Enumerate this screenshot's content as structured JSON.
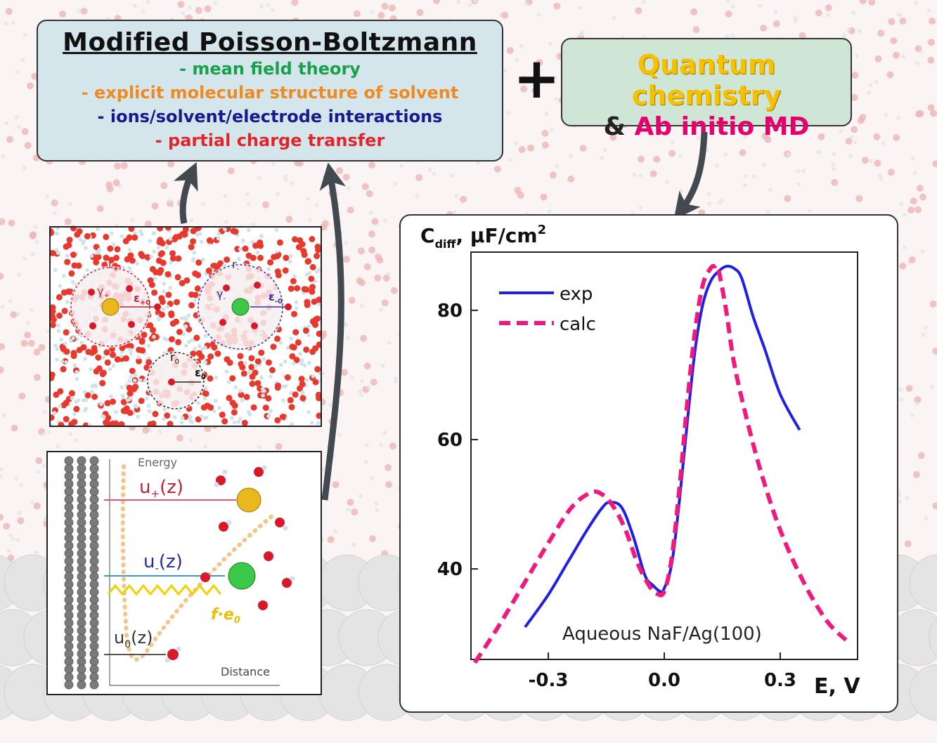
{
  "colors": {
    "green": "#1aa04a",
    "orange": "#ee8a1f",
    "navy": "#1b1a8c",
    "red": "#e0262a",
    "yellow": "#f5c100",
    "magenta": "#e6006e",
    "exp_line": "#1f1fe6",
    "calc_line": "#ee1a7d"
  },
  "mpb": {
    "title": "Modified Poisson-Boltzmann",
    "lines": [
      "- mean field theory",
      "- explicit molecular structure of solvent",
      "- ions/solvent/electrode interactions",
      "- partial charge transfer"
    ]
  },
  "qc": {
    "line1": "Quantum chemistry",
    "amp": "& ",
    "line2": "Ab initio MD"
  },
  "plus": "+",
  "panel1": {
    "r_plus": "r",
    "r_plus_sub": "+",
    "gamma_plus": "γ",
    "gamma_plus_sub": "+",
    "eps_plus": "ε",
    "eps_plus_sub": "+0",
    "r_minus": "r",
    "r_minus_sub": "-",
    "gamma_minus": "γ",
    "gamma_minus_sub": "-",
    "eps_minus": "ε",
    "eps_minus_sub": "-0",
    "r_zero": "r",
    "r_zero_sub": "0",
    "eps_zero": "ε",
    "eps_zero_sub": "0"
  },
  "panel2": {
    "energy": "Energy",
    "distance": "Distance",
    "u_plus": "u",
    "u_plus_sub": "+",
    "u_plus_z": "(z)",
    "u_minus": "u",
    "u_minus_sub": "-",
    "u_minus_z": "(z)",
    "u_zero": "u",
    "u_zero_sub": "0",
    "u_zero_z": "(z)",
    "f_e": "f·e",
    "f_e_sub": "0"
  },
  "chart_data": {
    "type": "line",
    "ylabel_main": "C",
    "ylabel_sub": "diff",
    "ylabel_unit": ", μF/cm",
    "ylabel_sup": "2",
    "xlabel": "E, V",
    "annotation": "Aqueous NaF/Ag(100)",
    "xlim": [
      -0.5,
      0.5
    ],
    "ylim": [
      26,
      89
    ],
    "xticks": [
      -0.3,
      0.0,
      0.3
    ],
    "xtick_labels": [
      "-0.3",
      "0.0",
      "0.3"
    ],
    "yticks": [
      40,
      60,
      80
    ],
    "ytick_labels": [
      "40",
      "60",
      "80"
    ],
    "legend_position": "top-left",
    "series": [
      {
        "name": "exp",
        "style": "solid",
        "x": [
          -0.36,
          -0.3,
          -0.25,
          -0.2,
          -0.16,
          -0.14,
          -0.11,
          -0.08,
          -0.05,
          -0.03,
          -0.01,
          0.0,
          0.02,
          0.04,
          0.06,
          0.08,
          0.1,
          0.12,
          0.14,
          0.16,
          0.18,
          0.2,
          0.23,
          0.26,
          0.3,
          0.35
        ],
        "y": [
          31,
          36,
          41,
          46,
          49.5,
          50.3,
          49.5,
          45,
          39,
          37.5,
          36.5,
          37,
          41,
          51,
          63,
          74,
          81,
          84.5,
          86,
          86.8,
          86.5,
          85,
          79,
          74,
          67,
          61.5
        ]
      },
      {
        "name": "calc",
        "style": "dashed",
        "x": [
          -0.49,
          -0.43,
          -0.36,
          -0.3,
          -0.24,
          -0.19,
          -0.16,
          -0.13,
          -0.1,
          -0.07,
          -0.04,
          -0.02,
          0.0,
          0.02,
          0.04,
          0.06,
          0.08,
          0.1,
          0.12,
          0.13,
          0.14,
          0.16,
          0.18,
          0.21,
          0.25,
          0.3,
          0.36,
          0.42,
          0.47
        ],
        "y": [
          25.5,
          31,
          38,
          44,
          49.5,
          51.8,
          51.5,
          49.5,
          46,
          41,
          37.5,
          36.2,
          36.5,
          42,
          53,
          66,
          77,
          84,
          86.5,
          86.8,
          86.3,
          80,
          72,
          64,
          55,
          46,
          38,
          32,
          29
        ]
      }
    ]
  }
}
